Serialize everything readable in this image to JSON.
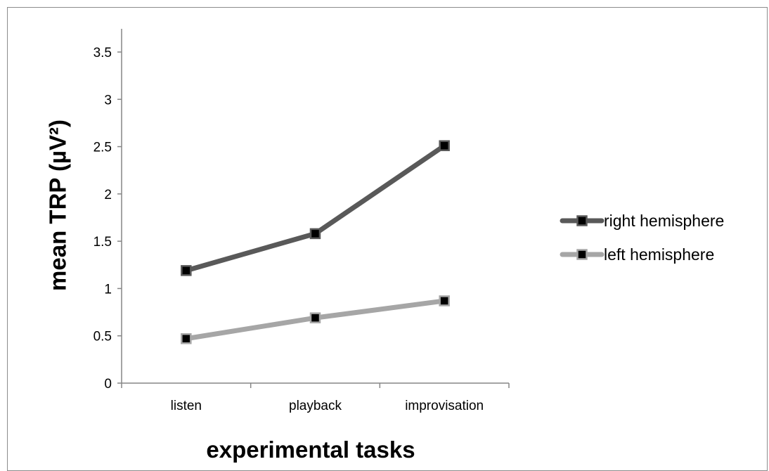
{
  "chart_data": {
    "type": "line",
    "categories": [
      "listen",
      "playback",
      "improvisation"
    ],
    "series": [
      {
        "name": "right hemisphere",
        "values": [
          1.19,
          1.58,
          2.51
        ],
        "color": "#595959"
      },
      {
        "name": "left hemisphere",
        "values": [
          0.47,
          0.69,
          0.87
        ],
        "color": "#a6a6a6"
      }
    ],
    "xlabel": "experimental tasks",
    "ylabel": "mean TRP (µV²)",
    "ylim": [
      0,
      3.5
    ],
    "yticks": [
      "0",
      "0.5",
      "1",
      "1.5",
      "2",
      "2.5",
      "3",
      "3.5"
    ],
    "marker": "square",
    "marker_color": "#000000",
    "grid": false,
    "legend_position": "right"
  }
}
